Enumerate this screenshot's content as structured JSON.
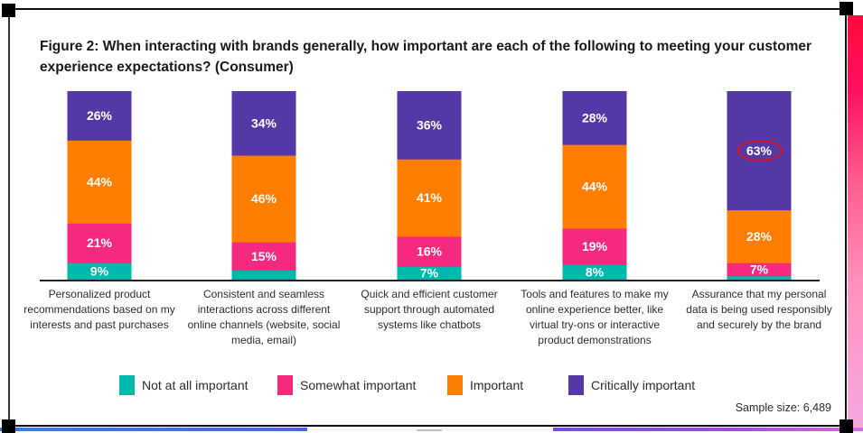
{
  "figure": {
    "title": "Figure 2: When interacting with brands generally, how important are each of the following to meeting your customer experience expectations? (Consumer)",
    "sample_size_label": "Sample size: 6,489",
    "highlighted_value": "63%"
  },
  "legend": [
    {
      "label": "Not at all important",
      "color": "#00b8ae"
    },
    {
      "label": "Somewhat important",
      "color": "#f52a7e"
    },
    {
      "label": "Important",
      "color": "#ff7d00"
    },
    {
      "label": "Critically important",
      "color": "#5439a6"
    }
  ],
  "categories": [
    "Personalized product recommendations based on my interests and past purchases",
    "Consistent and seamless interactions across different online channels (website, social media, email)",
    "Quick and efficient customer support through automated systems like chatbots",
    "Tools and features to make my online experience better, like virtual try-ons or interactive product demonstrations",
    "Assurance that my personal data is being used responsibly and securely by the brand"
  ],
  "chart_data": {
    "type": "bar",
    "stacked": true,
    "orientation": "vertical",
    "title": "Figure 2: When interacting with brands generally, how important are each of the following to meeting your customer experience expectations? (Consumer)",
    "xlabel": "",
    "ylabel": "",
    "ylim": [
      0,
      100
    ],
    "unit": "%",
    "grid": false,
    "legend_position": "bottom",
    "categories": [
      "Personalized product recommendations based on my interests and past purchases",
      "Consistent and seamless interactions across different online channels (website, social media, email)",
      "Quick and efficient customer support through automated systems like chatbots",
      "Tools and features to make my online experience better, like virtual try-ons or interactive product demonstrations",
      "Assurance that my personal data is being used responsibly and securely by the brand"
    ],
    "series": [
      {
        "name": "Not at all important",
        "color": "#00b8ae",
        "values": [
          9,
          5,
          7,
          8,
          2
        ],
        "labels": [
          "9%",
          "",
          "7%",
          "8%",
          ""
        ]
      },
      {
        "name": "Somewhat important",
        "color": "#f52a7e",
        "values": [
          21,
          15,
          16,
          19,
          7
        ],
        "labels": [
          "21%",
          "15%",
          "16%",
          "19%",
          "7%"
        ]
      },
      {
        "name": "Important",
        "color": "#ff7d00",
        "values": [
          44,
          46,
          41,
          44,
          28
        ],
        "labels": [
          "44%",
          "46%",
          "41%",
          "44%",
          "28%"
        ]
      },
      {
        "name": "Critically important",
        "color": "#5439a6",
        "values": [
          26,
          34,
          36,
          28,
          63
        ],
        "labels": [
          "26%",
          "34%",
          "36%",
          "28%",
          "63%"
        ]
      }
    ],
    "annotations": [
      "63% circled in red"
    ],
    "note": "Sample size: 6,489"
  }
}
